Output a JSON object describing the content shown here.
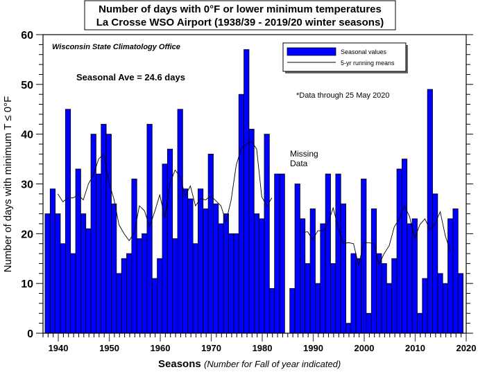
{
  "chart_data": {
    "type": "bar",
    "title": [
      "Number of days with 0°F or lower minimum temperatures",
      "La Crosse WSO Airport (1938/39 - 2019/20 winter seasons)"
    ],
    "xlabel": "Seasons",
    "xlabel_note": "(Number for Fall of year indicated)",
    "ylabel": "Number of days with minimum T ≤ 0°F",
    "xlim": [
      1937,
      2020
    ],
    "ylim": [
      0,
      60
    ],
    "x_ticks": [
      1940,
      1950,
      1960,
      1970,
      1980,
      1990,
      2000,
      2010,
      2020
    ],
    "y_ticks": [
      0,
      10,
      20,
      30,
      40,
      50,
      60
    ],
    "grid": false,
    "legend_placement": "top-right",
    "legend": [
      "Seasonal values",
      "5-yr running means"
    ],
    "annotations": {
      "source": "Wisconsin State Climatology Office",
      "average": "Seasonal Ave = 24.6 days",
      "data_note": "*Data through 25 May 2020",
      "missing": "Missing Data"
    },
    "colors": {
      "bar": "#0000ff",
      "line": "#000000"
    },
    "seasons_start": 1938,
    "series": [
      {
        "name": "Seasonal values",
        "type": "bar",
        "values": [
          24,
          29,
          24,
          18,
          45,
          16,
          33,
          24,
          21,
          40,
          32,
          42,
          40,
          26,
          12,
          15,
          16,
          31,
          19,
          20,
          42,
          11,
          15,
          34,
          37,
          19,
          45,
          29,
          27,
          18,
          29,
          25,
          36,
          26,
          22,
          24,
          20,
          20,
          48,
          57,
          41,
          24,
          23,
          40,
          9,
          32,
          32,
          null,
          9,
          30,
          23,
          14,
          25,
          10,
          22,
          32,
          14,
          32,
          26,
          2,
          16,
          15,
          31,
          4,
          25,
          16,
          14,
          10,
          15,
          33,
          35,
          22,
          23,
          4,
          11,
          49,
          28,
          12,
          10,
          23,
          25,
          12
        ]
      },
      {
        "name": "5-yr running means",
        "type": "line",
        "window": 5,
        "values": "centered 5-season mean of seasonal values"
      }
    ]
  }
}
